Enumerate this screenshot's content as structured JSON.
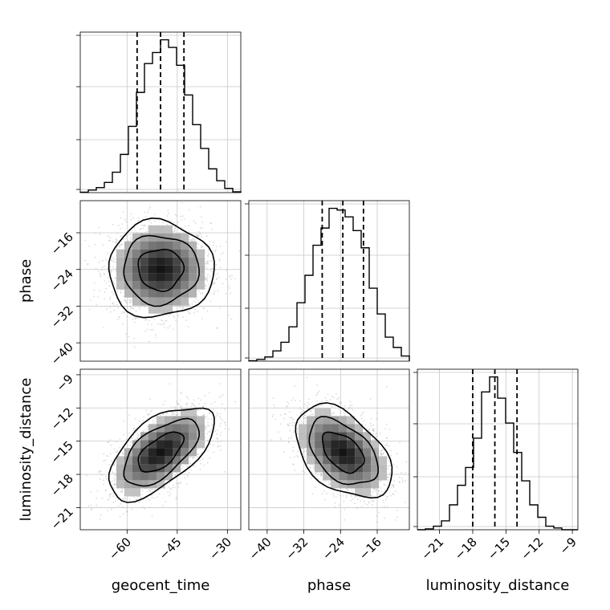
{
  "chart_data": {
    "type": "corner",
    "parameters": [
      "geocent_time",
      "phase",
      "luminosity_distance"
    ],
    "axis_labels": {
      "geocent_time": "geocent_time",
      "phase": "phase",
      "luminosity_distance": "luminosity_distance"
    },
    "ranges": {
      "geocent_time": [
        -74,
        -26
      ],
      "phase": [
        -44,
        -9
      ],
      "luminosity_distance": [
        -23,
        -8.5
      ]
    },
    "ticks": {
      "geocent_time": [
        -60,
        -45,
        -30
      ],
      "phase": [
        -40,
        -32,
        -24,
        -16
      ],
      "luminosity_distance": [
        -21,
        -18,
        -15,
        -12,
        -9
      ]
    },
    "tick_labels": {
      "geocent_time": [
        "−60",
        "−45",
        "−30"
      ],
      "phase": [
        "−40",
        "−32",
        "−24",
        "−16"
      ],
      "luminosity_distance": [
        "−21",
        "−18",
        "−15",
        "−12",
        "−9"
      ]
    },
    "quantiles": {
      "geocent_time": [
        -57,
        -50,
        -43
      ],
      "phase": [
        -28,
        -23.5,
        -19
      ],
      "luminosity_distance": [
        -18,
        -16,
        -14
      ]
    },
    "histograms": {
      "geocent_time": {
        "bins": [
          -74,
          -71.6,
          -69.2,
          -66.8,
          -64.4,
          -62,
          -59.6,
          -57.2,
          -54.8,
          -52.4,
          -50,
          -47.6,
          -45.2,
          -42.8,
          -40.4,
          -38,
          -35.6,
          -33.2,
          -30.8,
          -28.4,
          -26
        ],
        "counts": [
          0.5,
          3,
          6,
          12,
          24,
          45,
          78,
          118,
          152,
          165,
          180,
          171,
          150,
          115,
          80,
          52,
          28,
          14,
          5,
          1
        ]
      },
      "phase": {
        "bins": [
          -44,
          -42.25,
          -40.5,
          -38.75,
          -37,
          -35.25,
          -33.5,
          -31.75,
          -30,
          -28.25,
          -26.5,
          -24.75,
          -23,
          -21.25,
          -19.5,
          -17.75,
          -16,
          -14.25,
          -12.5,
          -10.75,
          -9
        ],
        "counts": [
          0.5,
          2,
          5,
          12,
          22,
          40,
          68,
          100,
          135,
          155,
          178,
          176,
          168,
          152,
          132,
          85,
          55,
          28,
          16,
          6
        ]
      },
      "luminosity_distance": {
        "bins": [
          -23,
          -22.275,
          -21.55,
          -20.825,
          -20.1,
          -19.375,
          -18.65,
          -17.925,
          -17.2,
          -16.475,
          -15.75,
          -15.025,
          -14.3,
          -13.575,
          -12.85,
          -12.125,
          -11.4,
          -10.675,
          -9.95,
          -9.225,
          -8.5
        ],
        "counts": [
          0,
          1,
          4,
          10,
          28,
          50,
          70,
          103,
          155,
          172,
          148,
          120,
          87,
          55,
          28,
          14,
          4,
          2,
          0,
          0
        ]
      }
    },
    "grid": true,
    "contours": true,
    "sample_points": true
  }
}
